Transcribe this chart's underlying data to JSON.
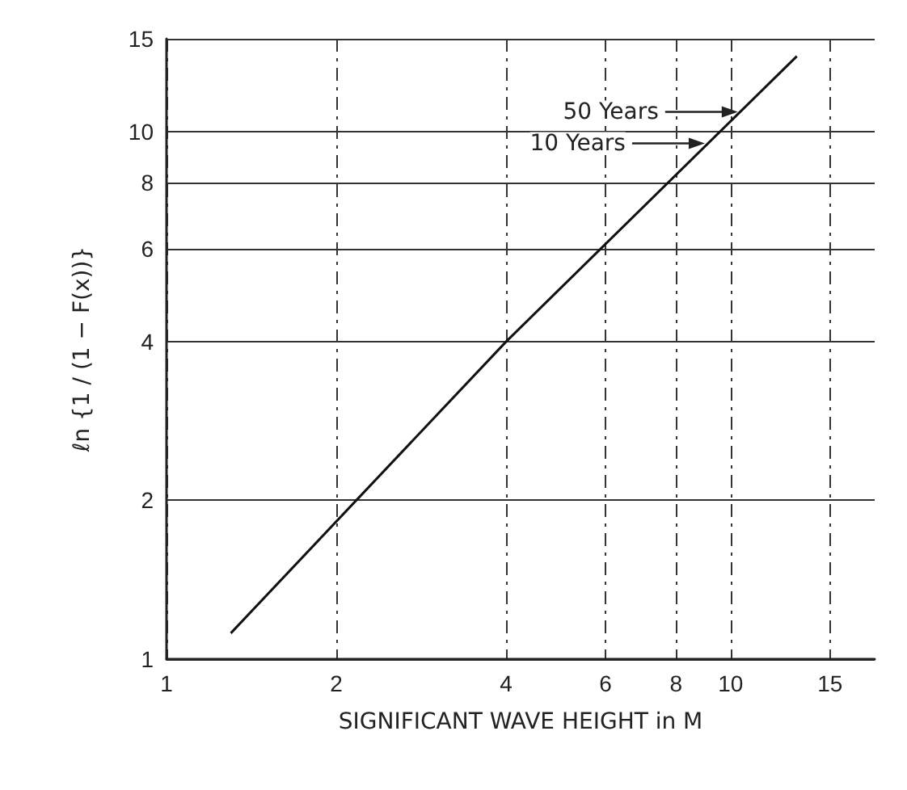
{
  "chart_data": {
    "type": "line",
    "xlabel": "SIGNIFICANT WAVE HEIGHT in M",
    "ylabel": "ℓn {1 / (1 − F(x))}",
    "x": [
      1.3,
      4,
      13.1
    ],
    "series": [
      {
        "color": "#111111",
        "values": [
          1.12,
          4,
          13.9
        ]
      }
    ],
    "xlim": [
      1,
      18
    ],
    "ylim": [
      1,
      15
    ],
    "xticks": [
      1,
      2,
      4,
      6,
      8,
      10,
      15
    ],
    "yticks": [
      1,
      2,
      4,
      6,
      8,
      10,
      15
    ],
    "log": "xy",
    "grid": true,
    "marker": "none",
    "line_style": "solid",
    "annotations": [
      {
        "text": "50 Years",
        "x": 10.3,
        "y": 10.9
      },
      {
        "text": "10 Years",
        "x": 9.0,
        "y": 9.5
      }
    ]
  }
}
